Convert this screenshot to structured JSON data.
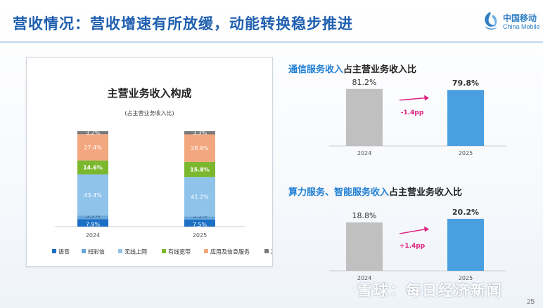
{
  "header": {
    "title": "营收情况：营收增速有所放缓，动能转换稳步推进",
    "logo_cn": "中国移动",
    "logo_en": "China Mobile"
  },
  "footer": {
    "page_number": "25",
    "watermark": "雪球：每日经济新闻"
  },
  "colors": {
    "title_blue": "#1f5fb0",
    "voice": "#1b6fc4",
    "sms": "#6aa6d9",
    "mobile_internet": "#8fc3ea",
    "broadband": "#7cb82f",
    "app_info": "#f3a77e",
    "other": "#7a7a7a",
    "bar_grey": "#c0c0c0",
    "bar_blue": "#4a9fe0",
    "arrow": "#e0207e"
  },
  "chart_data": [
    {
      "type": "bar",
      "stacked": true,
      "title": "主营业务收入构成",
      "subtitle": "(占主营业务收入比)",
      "categories": [
        "2024",
        "2025"
      ],
      "series": [
        {
          "name": "语音",
          "values": [
            7.9,
            7.5
          ],
          "labels": [
            "7.9%",
            "7.5%"
          ],
          "color": "#1b6fc4"
        },
        {
          "name": "短彩信",
          "values": [
            3.5,
            3.3
          ],
          "labels": [
            "3.5%",
            "3.3%"
          ],
          "color": "#6aa6d9"
        },
        {
          "name": "无线上网",
          "values": [
            43.4,
            41.2
          ],
          "labels": [
            "43.4%",
            "41.2%"
          ],
          "color": "#8fc3ea"
        },
        {
          "name": "有线宽带",
          "values": [
            14.6,
            15.8
          ],
          "labels": [
            "14.6%",
            "15.8%"
          ],
          "color": "#7cb82f"
        },
        {
          "name": "应用及信息服务",
          "values": [
            27.4,
            28.9
          ],
          "labels": [
            "27.4%",
            "28.9%"
          ],
          "color": "#f3a77e"
        },
        {
          "name": "其他",
          "values": [
            3.2,
            3.3
          ],
          "labels": [
            "3.2%",
            "3.3%"
          ],
          "color": "#7a7a7a"
        }
      ],
      "legend_position": "bottom"
    },
    {
      "type": "bar",
      "title_highlight": "通信服务收入",
      "title_rest": "占主营业务收入比",
      "categories": [
        "2024",
        "2025"
      ],
      "values": [
        81.2,
        79.8
      ],
      "labels": [
        "81.2%",
        "79.8%"
      ],
      "change_label": "-1.4pp",
      "colors": [
        "#c0c0c0",
        "#4a9fe0"
      ]
    },
    {
      "type": "bar",
      "title_highlight": "算力服务、智能服务收入",
      "title_rest": "占主营业务收入比",
      "categories": [
        "2024",
        "2025"
      ],
      "values": [
        18.8,
        20.2
      ],
      "labels": [
        "18.8%",
        "20.2%"
      ],
      "change_label": "+1.4pp",
      "colors": [
        "#c0c0c0",
        "#4a9fe0"
      ]
    }
  ]
}
